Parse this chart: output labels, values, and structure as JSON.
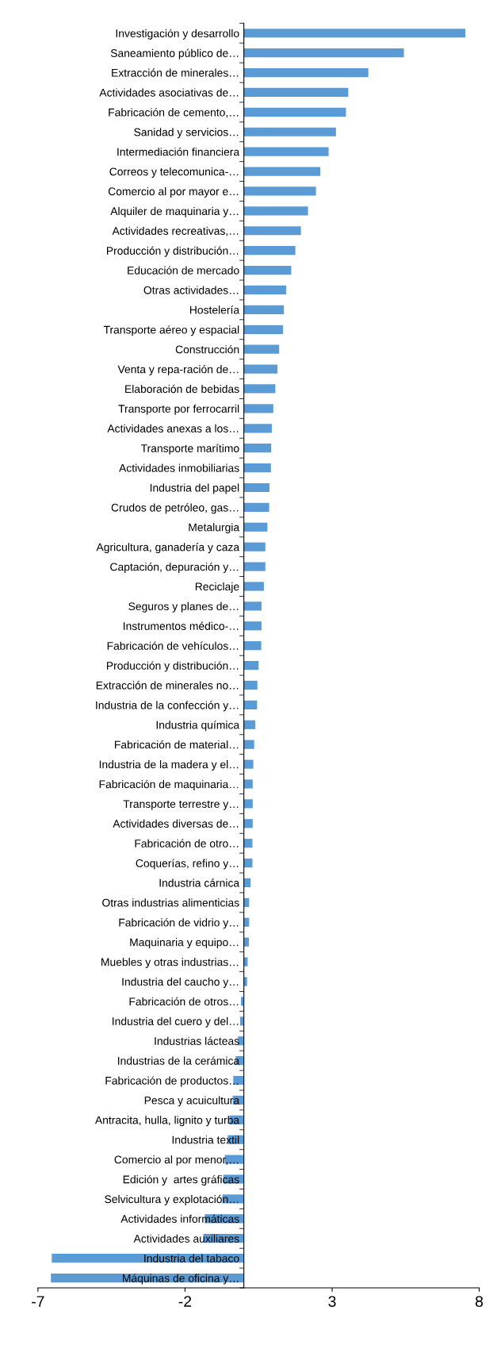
{
  "chart_data": {
    "type": "bar",
    "orientation": "horizontal",
    "categories": [
      "Investigación y desarrollo",
      "Saneamiento público de…",
      "Extracción de minerales…",
      "Actividades asociativas de…",
      "Fabricación de cemento,…",
      "Sanidad y servicios…",
      "Intermediación financiera",
      "Correos y telecomunica-…",
      "Comercio al por mayor e…",
      "Alquiler de maquinaria y…",
      "Actividades recreativas,…",
      "Producción y distribución…",
      "Educación de mercado",
      "Otras actividades…",
      "Hostelería",
      "Transporte aéreo y espacial",
      "Construcción",
      "Venta y repa-ración de…",
      "Elaboración de bebidas",
      "Transporte por ferrocarril",
      "Actividades anexas a los…",
      "Transporte marítimo",
      "Actividades inmobiliarias",
      "Industria del papel",
      "Crudos de petróleo, gas…",
      "Metalurgia",
      "Agricultura, ganadería y caza",
      "Captación, depuración y…",
      "Reciclaje",
      "Seguros y planes de…",
      "Instrumentos médico-…",
      "Fabricación de vehículos…",
      "Producción y distribución…",
      "Extracción de minerales no…",
      "Industria de la confección y…",
      "Industria química",
      "Fabricación de material…",
      "Industria de la madera y el…",
      "Fabricación de maquinaria…",
      "Transporte terrestre y…",
      "Actividades diversas de…",
      "Fabricación de otro…",
      "Coquerías, refino y…",
      "Industria cárnica",
      "Otras industrias alimenticias",
      "Fabricación de vidrio y…",
      "Maquinaria y equipo…",
      "Muebles y otras industrias…",
      "Industria del caucho y…",
      "Fabricación de otros…",
      "Industria del cuero y del…",
      "Industrias lácteas",
      "Industrias de la cerámica",
      "Fabricación de productos…",
      "Pesca y acuicultura",
      "Antracita, hulla, lignito y turba",
      "Industria textil",
      "Comercio al por menor,…",
      "Edición y  artes gráficas",
      "Selvicultura y explotación…",
      "Actividades informáticas",
      "Actividades auxiliares",
      "Industria del tabaco",
      "Máquinas de oficina y…"
    ],
    "values": [
      7.53,
      5.44,
      4.23,
      3.55,
      3.47,
      3.13,
      2.88,
      2.6,
      2.45,
      2.18,
      1.94,
      1.75,
      1.61,
      1.44,
      1.36,
      1.33,
      1.2,
      1.14,
      1.07,
      1.0,
      0.95,
      0.93,
      0.92,
      0.87,
      0.86,
      0.8,
      0.73,
      0.73,
      0.68,
      0.6,
      0.6,
      0.59,
      0.5,
      0.46,
      0.45,
      0.39,
      0.35,
      0.32,
      0.3,
      0.3,
      0.3,
      0.29,
      0.29,
      0.23,
      0.18,
      0.18,
      0.17,
      0.13,
      0.11,
      -0.1,
      -0.13,
      -0.2,
      -0.28,
      -0.36,
      -0.38,
      -0.49,
      -0.55,
      -0.65,
      -0.7,
      -0.73,
      -1.33,
      -1.38,
      -6.53,
      -6.56
    ],
    "color": "#5b9bd5",
    "xlim": [
      -7,
      8
    ],
    "xticks": [
      -7,
      -2,
      3,
      8
    ],
    "grid": false,
    "legend": false
  }
}
